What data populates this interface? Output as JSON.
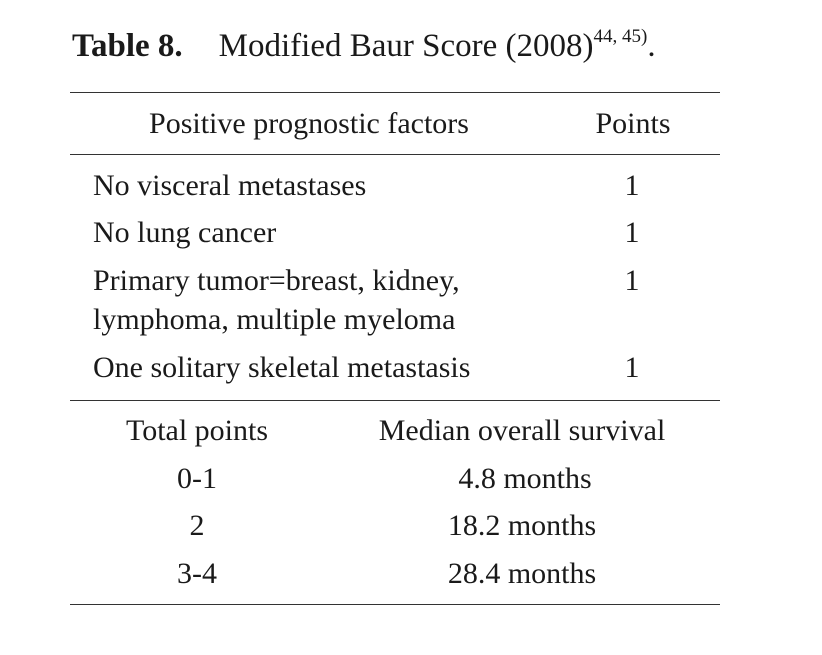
{
  "caption": {
    "label": "Table 8.",
    "title": "Modified Baur Score (2008)",
    "refs": "44, 45)",
    "end": "."
  },
  "table1": {
    "headers": [
      "Positive prognostic factors",
      "Points"
    ],
    "rows": [
      {
        "factor": "No visceral metastases",
        "points": "1"
      },
      {
        "factor": "No lung cancer",
        "points": "1"
      },
      {
        "factor": "Primary tumor=breast, kidney,",
        "factor_line2": "lymphoma, multiple myeloma",
        "points": "1"
      },
      {
        "factor": "One solitary skeletal metastasis",
        "points": "1"
      }
    ]
  },
  "table2": {
    "headers": [
      "Total points",
      "Median overall survival"
    ],
    "rows": [
      {
        "total": "0-1",
        "survival": "4.8 months"
      },
      {
        "total": "2",
        "survival": "18.2 months"
      },
      {
        "total": "3-4",
        "survival": "28.4 months"
      }
    ]
  }
}
